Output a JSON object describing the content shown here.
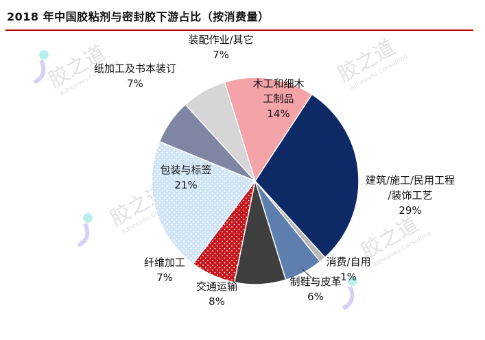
{
  "title": "2018 年中国胶粘剂与密封胶下游占比（按消费量）",
  "watermark": {
    "text": "胶之道",
    "sub": "Adhesives Consulting"
  },
  "chart_data": {
    "type": "pie",
    "title": "2018 年中国胶粘剂与密封胶下游占比（按消费量）",
    "slices": [
      {
        "name": "木工和细木工制品",
        "label_lines": [
          "木工和细木",
          "工制品"
        ],
        "value": 14,
        "pct_label": "14%",
        "color": "#f4a3a8"
      },
      {
        "name": "建筑/施工/民用工程/装饰工艺",
        "label_lines": [
          "建筑/施工/民用工程",
          "/装饰工艺"
        ],
        "value": 29,
        "pct_label": "29%",
        "color": "#0d2a66"
      },
      {
        "name": "消费/自用",
        "label_lines": [
          "消费/自用"
        ],
        "value": 1,
        "pct_label": "1%",
        "color": "#b8b8b8"
      },
      {
        "name": "制鞋与皮革",
        "label_lines": [
          "制鞋与皮革"
        ],
        "value": 6,
        "pct_label": "6%",
        "color": "#5e7fae"
      },
      {
        "name": "交通运输",
        "label_lines": [
          "交通运输"
        ],
        "value": 8,
        "pct_label": "8%",
        "color": "#3f3f3f"
      },
      {
        "name": "纤维加工",
        "label_lines": [
          "纤维加工"
        ],
        "value": 7,
        "pct_label": "7%",
        "color": "#c4161c"
      },
      {
        "name": "包装与标签",
        "label_lines": [
          "包装与标签"
        ],
        "value": 21,
        "pct_label": "21%",
        "color": "#cfe5f6"
      },
      {
        "name": "纸加工及书本装订",
        "label_lines": [
          "纸加工及书本装订"
        ],
        "value": 7,
        "pct_label": "7%",
        "color": "#7f86a3"
      },
      {
        "name": "装配作业/其它",
        "label_lines": [
          "装配作业/其它"
        ],
        "value": 7,
        "pct_label": "7%",
        "color": "#d6d6d6"
      }
    ]
  }
}
